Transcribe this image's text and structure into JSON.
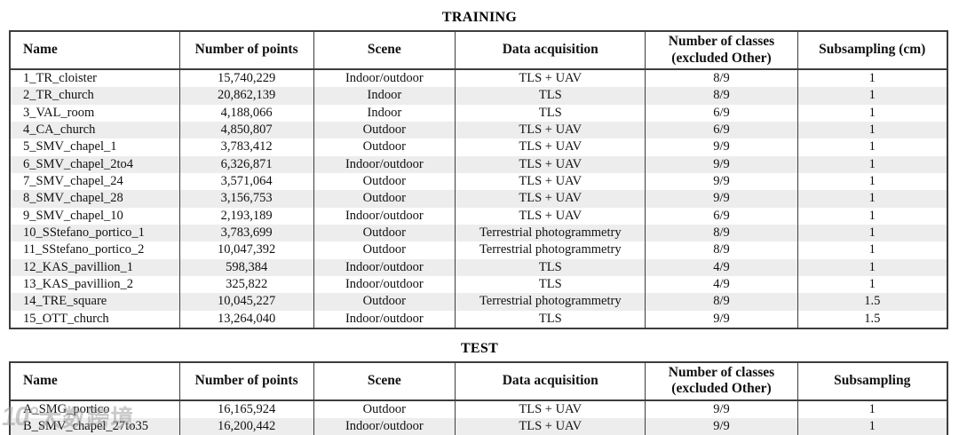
{
  "tables": [
    {
      "title": "TRAINING",
      "headers": [
        "Name",
        "Number of points",
        "Scene",
        "Data acquisition",
        "Number of classes (excluded Other)",
        "Subsampling (cm)"
      ],
      "rows": [
        [
          "1_TR_cloister",
          "15,740,229",
          "Indoor/outdoor",
          "TLS + UAV",
          "8/9",
          "1"
        ],
        [
          "2_TR_church",
          "20,862,139",
          "Indoor",
          "TLS",
          "8/9",
          "1"
        ],
        [
          "3_VAL_room",
          "4,188,066",
          "Indoor",
          "TLS",
          "6/9",
          "1"
        ],
        [
          "4_CA_church",
          "4,850,807",
          "Outdoor",
          "TLS + UAV",
          "6/9",
          "1"
        ],
        [
          "5_SMV_chapel_1",
          "3,783,412",
          "Outdoor",
          "TLS + UAV",
          "9/9",
          "1"
        ],
        [
          "6_SMV_chapel_2to4",
          "6,326,871",
          "Indoor/outdoor",
          "TLS + UAV",
          "9/9",
          "1"
        ],
        [
          "7_SMV_chapel_24",
          "3,571,064",
          "Outdoor",
          "TLS + UAV",
          "9/9",
          "1"
        ],
        [
          "8_SMV_chapel_28",
          "3,156,753",
          "Outdoor",
          "TLS + UAV",
          "9/9",
          "1"
        ],
        [
          "9_SMV_chapel_10",
          "2,193,189",
          "Indoor/outdoor",
          "TLS + UAV",
          "6/9",
          "1"
        ],
        [
          "10_SStefano_portico_1",
          "3,783,699",
          "Outdoor",
          "Terrestrial photogrammetry",
          "8/9",
          "1"
        ],
        [
          "11_SStefano_portico_2",
          "10,047,392",
          "Outdoor",
          "Terrestrial photogrammetry",
          "8/9",
          "1"
        ],
        [
          "12_KAS_pavillion_1",
          "598,384",
          "Indoor/outdoor",
          "TLS",
          "4/9",
          "1"
        ],
        [
          "13_KAS_pavillion_2",
          "325,822",
          "Indoor/outdoor",
          "TLS",
          "4/9",
          "1"
        ],
        [
          "14_TRE_square",
          "10,045,227",
          "Outdoor",
          "Terrestrial photogrammetry",
          "8/9",
          "1.5"
        ],
        [
          "15_OTT_church",
          "13,264,040",
          "Indoor/outdoor",
          "TLS",
          "9/9",
          "1.5"
        ]
      ]
    },
    {
      "title": "TEST",
      "headers": [
        "Name",
        "Number of points",
        "Scene",
        "Data acquisition",
        "Number of classes (excluded Other)",
        "Subsampling"
      ],
      "rows": [
        [
          "A_SMG_portico",
          "16,165,924",
          "Outdoor",
          "TLS + UAV",
          "9/9",
          "1"
        ],
        [
          "B_SMV_chapel_27to35",
          "16,200,442",
          "Indoor/outdoor",
          "TLS + UAV",
          "9/9",
          "1"
        ]
      ]
    }
  ],
  "colors": {
    "row_shading": "#ededed",
    "border": "#3d3d3d",
    "text": "#111111"
  },
  "watermark": {
    "logo": "10°",
    "text": "大数跨境"
  }
}
